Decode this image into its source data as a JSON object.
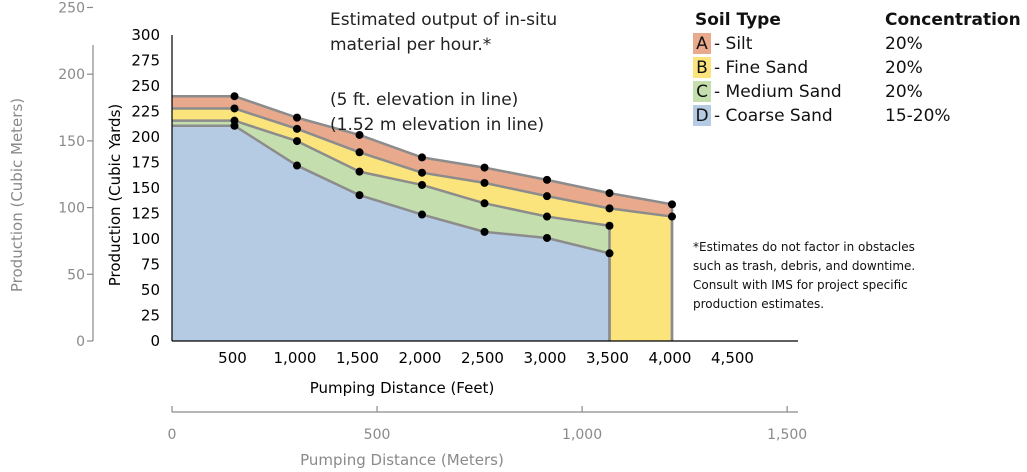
{
  "chart_data": {
    "type": "area",
    "title_lines": [
      "Estimated output of in-situ",
      "material per hour.*",
      "",
      "(5 ft. elevation in line)",
      "(1.52 m elevation in line)"
    ],
    "xlabel": "Pumping Distance (Feet)",
    "ylabel": "Production (Cubic Yards)",
    "xlim": [
      0,
      5000
    ],
    "ylim": [
      0,
      300
    ],
    "x_ticks": [
      "500",
      "1,000",
      "1,500",
      "2,000",
      "2,500",
      "3,000",
      "3,500",
      "4,000",
      "4,500"
    ],
    "x_tick_values": [
      500,
      1000,
      1500,
      2000,
      2500,
      3000,
      3500,
      4000,
      4500
    ],
    "y_ticks": [
      "0",
      "25",
      "50",
      "75",
      "100",
      "125",
      "150",
      "175",
      "200",
      "225",
      "250",
      "275",
      "300"
    ],
    "y_tick_values": [
      0,
      25,
      50,
      75,
      100,
      125,
      150,
      175,
      200,
      225,
      250,
      275,
      300
    ],
    "secondary_y_axis": {
      "label": "Production (Cubic Meters)",
      "ticks": [
        "0",
        "50",
        "100",
        "150",
        "200",
        "250"
      ],
      "tick_values": [
        0,
        50,
        100,
        150,
        200,
        250
      ],
      "ylim": [
        0,
        229.4
      ]
    },
    "secondary_x_axis": {
      "label": "Pumping Distance (Meters)",
      "ticks": [
        "0",
        "500",
        "1,000",
        "1,500"
      ],
      "tick_values": [
        0,
        500,
        1000,
        1500
      ],
      "xlim": [
        0,
        1524
      ]
    },
    "series": [
      {
        "letter": "A",
        "name": "Silt",
        "concentration": "20%",
        "color": "#e9a98c",
        "points": [
          [
            0,
            240
          ],
          [
            500,
            240
          ],
          [
            1000,
            219
          ],
          [
            1500,
            202
          ],
          [
            2000,
            180
          ],
          [
            2500,
            170
          ],
          [
            3000,
            158
          ],
          [
            3500,
            145
          ],
          [
            4000,
            134
          ]
        ]
      },
      {
        "letter": "B",
        "name": "Fine Sand",
        "concentration": "20%",
        "color": "#fbe47c",
        "points": [
          [
            0,
            228
          ],
          [
            500,
            228
          ],
          [
            1000,
            208
          ],
          [
            1500,
            185
          ],
          [
            2000,
            165
          ],
          [
            2500,
            155
          ],
          [
            3000,
            142
          ],
          [
            3500,
            130
          ],
          [
            4000,
            122
          ]
        ]
      },
      {
        "letter": "C",
        "name": "Medium Sand",
        "concentration": "20%",
        "color": "#c4dfad",
        "points": [
          [
            0,
            216
          ],
          [
            500,
            216
          ],
          [
            1000,
            196
          ],
          [
            1500,
            166
          ],
          [
            2000,
            153
          ],
          [
            2500,
            135
          ],
          [
            3000,
            122
          ],
          [
            3500,
            113
          ]
        ]
      },
      {
        "letter": "D",
        "name": "Coarse Sand",
        "concentration": "15-20%",
        "color": "#b5cbe3",
        "points": [
          [
            0,
            211
          ],
          [
            500,
            211
          ],
          [
            1000,
            172
          ],
          [
            1500,
            143
          ],
          [
            2000,
            124
          ],
          [
            2500,
            107
          ],
          [
            3000,
            101
          ],
          [
            3500,
            86
          ]
        ]
      }
    ],
    "legend": {
      "position": "top-right",
      "header_type": "Soil Type",
      "header_concentration": "Concentration",
      "rows": [
        {
          "letter": "A",
          "label": "- Silt",
          "concentration": "20%",
          "color": "#e9a98c"
        },
        {
          "letter": "B",
          "label": "- Fine Sand",
          "concentration": "20%",
          "color": "#fbe47c"
        },
        {
          "letter": "C",
          "label": "- Medium Sand",
          "concentration": "20%",
          "color": "#c4dfad"
        },
        {
          "letter": "D",
          "label": "- Coarse Sand",
          "concentration": "15-20%",
          "color": "#b5cbe3"
        }
      ]
    },
    "footnote_lines": [
      "*Estimates do not factor in obstacles",
      "such as trash, debris, and downtime.",
      "Consult with IMS for project specific",
      "production estimates."
    ]
  }
}
